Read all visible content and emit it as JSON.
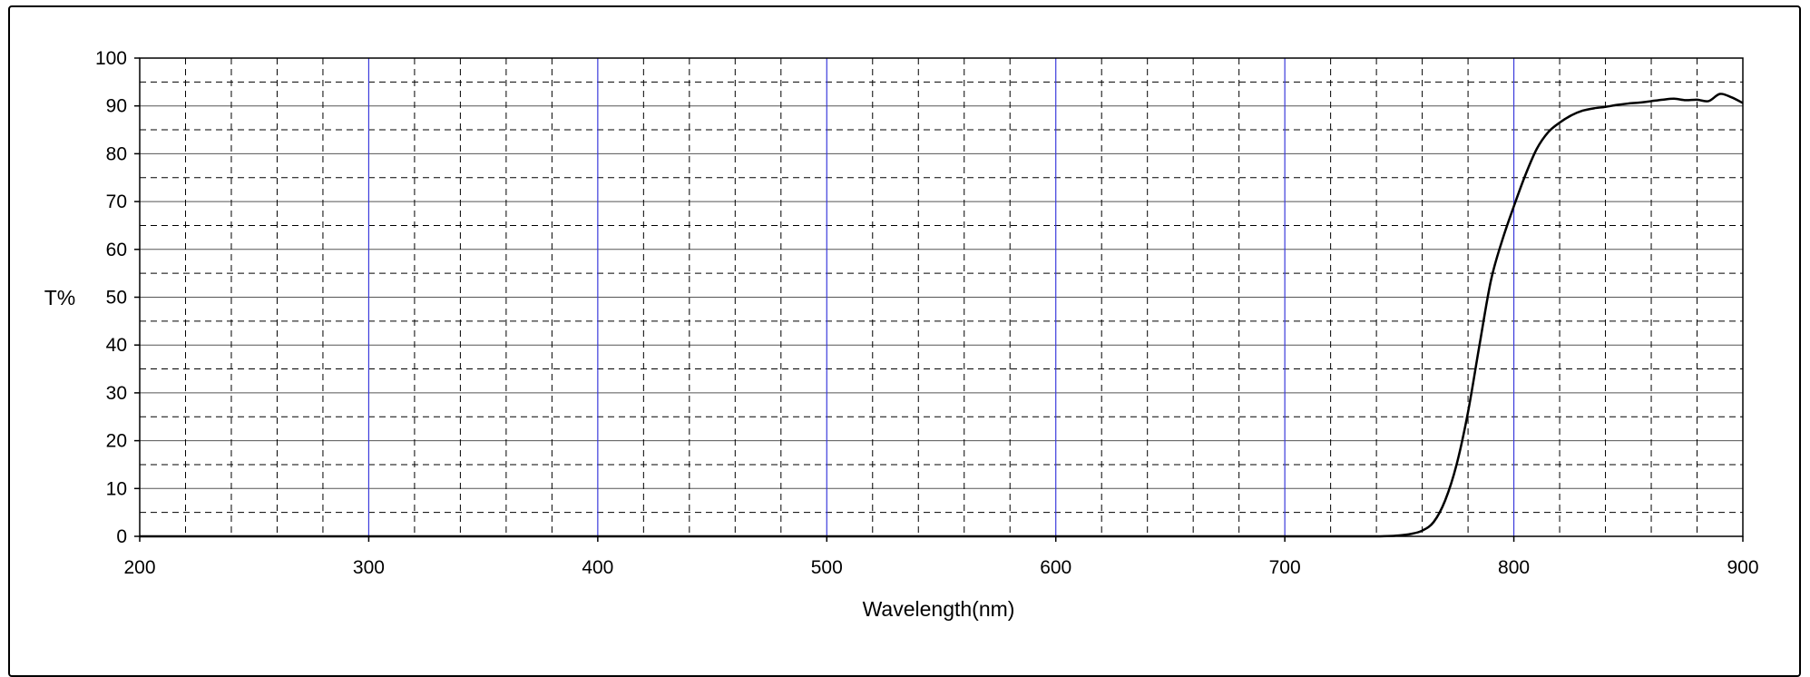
{
  "chart_data": {
    "type": "line",
    "title": "",
    "xlabel": "Wavelength(nm)",
    "ylabel": "T%",
    "xlim": [
      200,
      900
    ],
    "ylim": [
      0,
      100
    ],
    "x_ticks": [
      200,
      300,
      400,
      500,
      600,
      700,
      800,
      900
    ],
    "y_ticks": [
      0,
      10,
      20,
      30,
      40,
      50,
      60,
      70,
      80,
      90,
      100
    ],
    "x_tick_labels": [
      "200",
      "300",
      "400",
      "500",
      "600",
      "700",
      "800",
      "900"
    ],
    "y_tick_labels": [
      "0",
      "10",
      "20",
      "30",
      "40",
      "50",
      "60",
      "70",
      "80",
      "90",
      "100"
    ],
    "grid": true,
    "colors": {
      "curve": "#000000",
      "major_x_grid": "#3b3bdc",
      "grid": "#000000"
    },
    "series": [
      {
        "x": [
          200,
          300,
          400,
          500,
          600,
          700,
          740,
          750,
          755,
          760,
          765,
          770,
          775,
          780,
          785,
          790,
          795,
          800,
          805,
          810,
          815,
          820,
          825,
          830,
          835,
          840,
          845,
          850,
          855,
          860,
          865,
          870,
          875,
          880,
          885,
          890,
          895,
          900
        ],
        "y": [
          0,
          0,
          0,
          0,
          0,
          0,
          0,
          0.2,
          0.5,
          1.2,
          3,
          7.5,
          15,
          26,
          40,
          53.5,
          62,
          69,
          75.5,
          81,
          84.5,
          86.5,
          88,
          89,
          89.5,
          89.8,
          90.2,
          90.5,
          90.7,
          91,
          91.3,
          91.5,
          91.2,
          91.3,
          91,
          92.5,
          91.8,
          90.6
        ]
      }
    ]
  }
}
